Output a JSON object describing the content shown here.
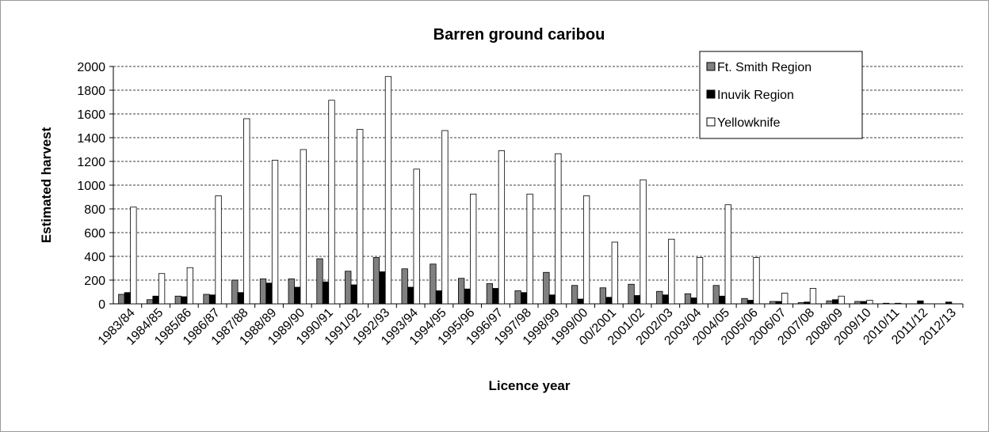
{
  "chart_data": {
    "type": "bar",
    "title": "Barren ground caribou",
    "x_label": "Licence year",
    "y_label": "Estimated harvest",
    "categories": [
      "1983/84",
      "1984/85",
      "1985/86",
      "1986/87",
      "1987/88",
      "1988/89",
      "1989/90",
      "1990/91",
      "1991/92",
      "1992/93",
      "1993/94",
      "1994/95",
      "1995/96",
      "1996/97",
      "1997/98",
      "1998/99",
      "1999/00",
      "00/2001",
      "2001/02",
      "2002/03",
      "2003/04",
      "2004/05",
      "2005/06",
      "2006/07",
      "2007/08",
      "2008/09",
      "2009/10",
      "2010/11",
      "2011/12",
      "2012/13"
    ],
    "series": [
      {
        "name": "Ft. Smith Region",
        "color": "#808080",
        "values": [
          80,
          35,
          65,
          80,
          200,
          210,
          210,
          380,
          275,
          390,
          295,
          335,
          215,
          170,
          110,
          265,
          155,
          135,
          165,
          105,
          85,
          155,
          45,
          20,
          10,
          25,
          20,
          5,
          0,
          0
        ]
      },
      {
        "name": "Inuvik Region",
        "color": "#000000",
        "values": [
          95,
          65,
          60,
          75,
          95,
          175,
          140,
          185,
          160,
          270,
          140,
          110,
          125,
          130,
          95,
          75,
          40,
          55,
          70,
          75,
          50,
          65,
          30,
          20,
          15,
          35,
          20,
          0,
          25,
          15
        ]
      },
      {
        "name": "Yellowknife",
        "color": "#ffffff",
        "values": [
          815,
          255,
          305,
          910,
          1560,
          1210,
          1300,
          1715,
          1470,
          1915,
          1135,
          1460,
          925,
          1290,
          925,
          1265,
          910,
          520,
          1045,
          545,
          390,
          835,
          390,
          90,
          130,
          65,
          30,
          5,
          0,
          0
        ]
      }
    ],
    "ylim": [
      0,
      2000
    ],
    "yticks": [
      0,
      200,
      400,
      600,
      800,
      1000,
      1200,
      1400,
      1600,
      1800,
      2000
    ],
    "grid": true,
    "legend": "top-right"
  }
}
